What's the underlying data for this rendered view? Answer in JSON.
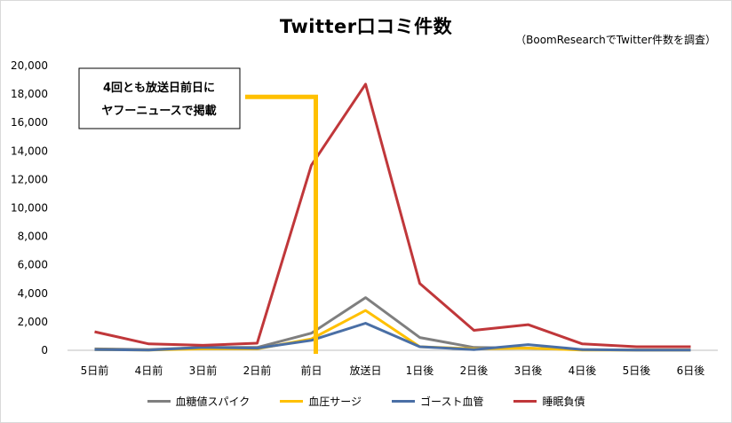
{
  "chart_data": {
    "type": "line",
    "title": "Twitter口コミ件数",
    "subtitle": "（BoomResearchでTwitter件数を調査）",
    "categories": [
      "5日前",
      "4日前",
      "3日前",
      "2日前",
      "前日",
      "放送日",
      "1日後",
      "2日後",
      "3日後",
      "4日後",
      "5日後",
      "6日後"
    ],
    "ylim": [
      0,
      20000
    ],
    "yticks": [
      0,
      2000,
      4000,
      6000,
      8000,
      10000,
      12000,
      14000,
      16000,
      18000,
      20000
    ],
    "ytick_labels": [
      "0",
      "2,000",
      "4,000",
      "6,000",
      "8,000",
      "10,000",
      "12,000",
      "14,000",
      "16,000",
      "18,000",
      "20,000"
    ],
    "grid": false,
    "legend_position": "bottom",
    "series": [
      {
        "name": "血糖値スパイク",
        "color": "#7f7f7f",
        "values": [
          100,
          50,
          200,
          200,
          1200,
          3700,
          900,
          200,
          150,
          50,
          20,
          20
        ]
      },
      {
        "name": "血圧サージ",
        "color": "#ffc000",
        "values": [
          50,
          20,
          100,
          100,
          800,
          2800,
          250,
          100,
          150,
          20,
          20,
          20
        ]
      },
      {
        "name": "ゴースト血管",
        "color": "#4a6fa5",
        "values": [
          50,
          20,
          200,
          150,
          700,
          1900,
          250,
          50,
          400,
          50,
          20,
          20
        ]
      },
      {
        "name": "睡眠負債",
        "color": "#c0373a",
        "values": [
          1300,
          450,
          350,
          500,
          13000,
          18700,
          4700,
          1400,
          1800,
          450,
          250,
          250
        ]
      }
    ],
    "annotation": {
      "lines": [
        "4回とも放送日前日に",
        "ヤフーニュースで掲載"
      ],
      "marker_color": "#ffc000",
      "marker_level": 17800,
      "marker_category": "前日"
    }
  }
}
